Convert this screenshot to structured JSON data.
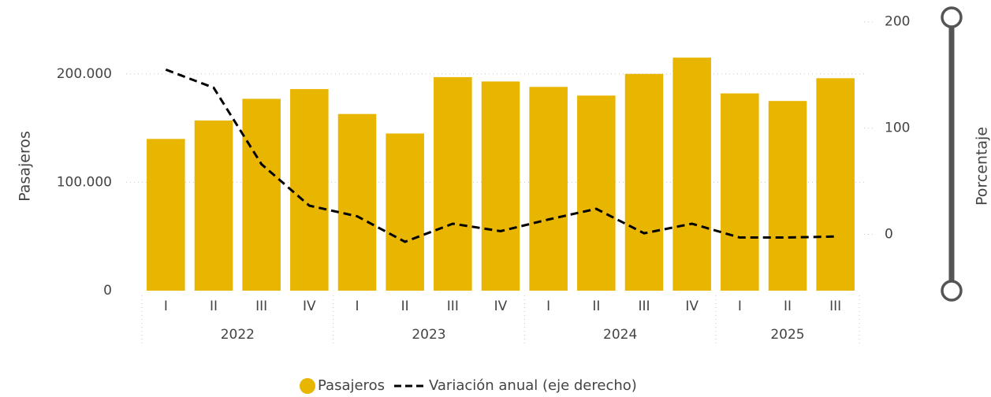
{
  "chart_data": {
    "type": "bar-line",
    "y_label": "Pasajeros",
    "y2_label": "Porcentaje",
    "groups": [
      {
        "name": "2022",
        "categories": [
          "I",
          "II",
          "III",
          "IV"
        ]
      },
      {
        "name": "2023",
        "categories": [
          "I",
          "II",
          "III",
          "IV"
        ]
      },
      {
        "name": "2024",
        "categories": [
          "I",
          "II",
          "III",
          "IV"
        ]
      },
      {
        "name": "2025",
        "categories": [
          "I",
          "II",
          "III"
        ]
      }
    ],
    "series": [
      {
        "name": "Pasajeros",
        "type": "bar",
        "color": "#e8b500",
        "values": [
          140000,
          157000,
          177000,
          186000,
          163000,
          145000,
          197000,
          193000,
          188000,
          180000,
          200000,
          215000,
          182000,
          175000,
          196000
        ]
      },
      {
        "name": "Variación anual (eje derecho)",
        "type": "line",
        "axis": "y2",
        "color": "#000000",
        "dashed": true,
        "values": [
          155,
          138,
          66,
          27,
          17,
          -7,
          10,
          3,
          14,
          24,
          1,
          10,
          -3,
          -3,
          -2
        ]
      }
    ],
    "ylim": [
      0,
      250000
    ],
    "yticks": [
      0,
      {
        "value": 100000,
        "label": "100.000"
      },
      {
        "value": 200000,
        "label": "200.000"
      }
    ],
    "y2lim": [
      -53,
      202
    ],
    "y2ticks": [
      0,
      100,
      200
    ],
    "grid": true
  }
}
